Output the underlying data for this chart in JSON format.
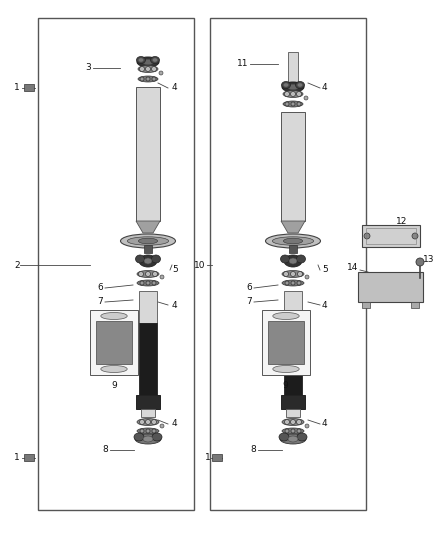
{
  "fig_width": 4.38,
  "fig_height": 5.33,
  "dpi": 100,
  "bg_color": "#ffffff",
  "label_fontsize": 6.5
}
